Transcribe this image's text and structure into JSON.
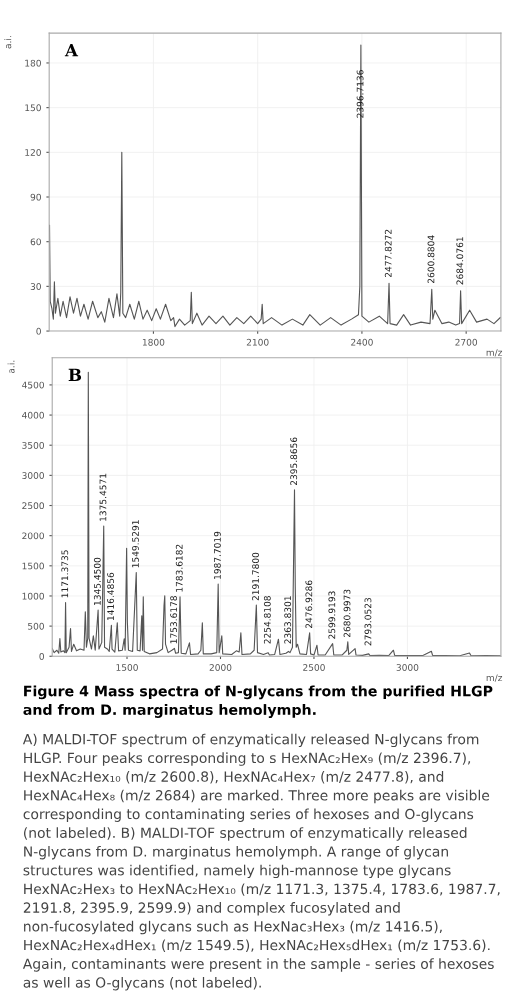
{
  "chart_data": [
    {
      "type": "line",
      "xlabel": "m/z",
      "ylabel": "a.i.",
      "xlim": [
        1500,
        2800
      ],
      "ylim": [
        0,
        200
      ],
      "xticks": [
        1800,
        2100,
        2400,
        2700
      ],
      "yticks": [
        0,
        30,
        60,
        90,
        120,
        150,
        180
      ],
      "grid": true,
      "legend": false,
      "marker": "none",
      "line_style": "solid",
      "series": [
        {
          "color": "#555555",
          "x": [
            1501,
            1503,
            1508,
            1512,
            1515,
            1518,
            1525,
            1532,
            1540,
            1550,
            1560,
            1570,
            1580,
            1590,
            1600,
            1612,
            1625,
            1640,
            1650,
            1660,
            1672,
            1685,
            1695,
            1703,
            1706,
            1709,
            1712,
            1720,
            1732,
            1745,
            1758,
            1770,
            1782,
            1795,
            1808,
            1820,
            1835,
            1850,
            1858,
            1862,
            1875,
            1890,
            1906,
            1909,
            1912,
            1925,
            1940,
            1960,
            1980,
            2000,
            2020,
            2040,
            2060,
            2080,
            2100,
            2110,
            2113,
            2116,
            2140,
            2170,
            2200,
            2230,
            2250,
            2280,
            2310,
            2340,
            2370,
            2390,
            2394,
            2397,
            2400,
            2420,
            2450,
            2474,
            2478,
            2481,
            2500,
            2520,
            2540,
            2570,
            2596,
            2601,
            2604,
            2610,
            2630,
            2650,
            2670,
            2681,
            2684,
            2687,
            2710,
            2730,
            2760,
            2780,
            2798
          ],
          "values": [
            71,
            20,
            15,
            8,
            33,
            12,
            22,
            10,
            20,
            9,
            23,
            12,
            22,
            10,
            18,
            8,
            20,
            9,
            13,
            6,
            22,
            9,
            25,
            10,
            26,
            120,
            12,
            9,
            18,
            8,
            20,
            8,
            14,
            7,
            15,
            8,
            18,
            7,
            9,
            3,
            8,
            4,
            7,
            26,
            5,
            12,
            4,
            10,
            5,
            10,
            4,
            9,
            5,
            10,
            5,
            8,
            18,
            5,
            9,
            4,
            8,
            4,
            11,
            4,
            9,
            4,
            8,
            11,
            30,
            192,
            10,
            6,
            10,
            5,
            32,
            5,
            4,
            11,
            4,
            6,
            5,
            28,
            8,
            14,
            5,
            6,
            4,
            5,
            27,
            5,
            14,
            6,
            8,
            5,
            9
          ]
        }
      ],
      "annotations": [
        "A",
        {
          "text": "2396.7136",
          "x": 2397,
          "y": 140
        },
        {
          "text": "2477.8272",
          "x": 2478,
          "y": 33
        },
        {
          "text": "2600.8804",
          "x": 2601,
          "y": 29
        },
        {
          "text": "2684.0761",
          "x": 2684,
          "y": 28
        }
      ]
    },
    {
      "type": "line",
      "xlabel": "m/z",
      "ylabel": "a.i.",
      "xlim": [
        1100,
        3500
      ],
      "ylim": [
        0,
        4950
      ],
      "xticks": [
        1500,
        2000,
        2500,
        3000
      ],
      "yticks": [
        0,
        500,
        1000,
        1500,
        2000,
        2500,
        3000,
        3500,
        4000,
        4500
      ],
      "grid": true,
      "legend": false,
      "marker": "none",
      "line_style": "solid",
      "series": [
        {
          "color": "#555555",
          "x": [
            1100,
            1110,
            1125,
            1135,
            1141,
            1146,
            1160,
            1168,
            1171.4,
            1175,
            1190,
            1198,
            1203,
            1215,
            1230,
            1250,
            1270,
            1277,
            1283,
            1290,
            1293,
            1297,
            1310,
            1320,
            1330,
            1345.5,
            1350,
            1365,
            1375.5,
            1380,
            1395,
            1405,
            1416.5,
            1420,
            1435,
            1448,
            1455,
            1475,
            1485,
            1490,
            1498,
            1502,
            1508,
            1530,
            1549.5,
            1555,
            1570,
            1579,
            1583,
            1587,
            1592,
            1620,
            1660,
            1690,
            1698,
            1702,
            1706,
            1720,
            1740,
            1753.6,
            1760,
            1775,
            1783.6,
            1790,
            1815,
            1834,
            1840,
            1880,
            1895,
            1903,
            1908,
            1950,
            1980,
            1987.7,
            1993,
            2007,
            2012,
            2060,
            2085,
            2100,
            2109,
            2115,
            2160,
            2180,
            2191.8,
            2198,
            2230,
            2254.8,
            2262,
            2290,
            2310,
            2318,
            2350,
            2363.8,
            2372,
            2385,
            2395.9,
            2400,
            2405,
            2412,
            2425,
            2460,
            2476.9,
            2482,
            2500,
            2516,
            2522,
            2560,
            2599.9,
            2606,
            2650,
            2676,
            2681,
            2686,
            2720,
            2725,
            2760,
            2793,
            2800,
            2850,
            2900,
            2925,
            2932,
            3000,
            3080,
            3128,
            3135,
            3200,
            3280,
            3332,
            3340,
            3420,
            3498
          ],
          "values": [
            130,
            60,
            100,
            50,
            294,
            70,
            90,
            60,
            892,
            60,
            150,
            460,
            80,
            200,
            90,
            120,
            100,
            737,
            150,
            300,
            4710,
            300,
            120,
            340,
            100,
            765,
            120,
            230,
            2160,
            150,
            120,
            80,
            515,
            120,
            70,
            554,
            90,
            100,
            290,
            100,
            1790,
            560,
            100,
            80,
            1390,
            100,
            90,
            670,
            100,
            986,
            80,
            40,
            60,
            120,
            840,
            1003,
            200,
            60,
            100,
            130,
            50,
            60,
            986,
            50,
            40,
            222,
            30,
            40,
            100,
            554,
            40,
            40,
            60,
            1197,
            60,
            338,
            40,
            30,
            90,
            70,
            388,
            30,
            40,
            100,
            848,
            60,
            30,
            60,
            20,
            30,
            283,
            30,
            50,
            80,
            60,
            150,
            2759,
            1150,
            150,
            200,
            40,
            30,
            388,
            40,
            20,
            183,
            20,
            20,
            210,
            20,
            20,
            100,
            238,
            30,
            127,
            20,
            15,
            40,
            10,
            15,
            10,
            100,
            10,
            10,
            10,
            83,
            10,
            10,
            8,
            55,
            8,
            10,
            8
          ]
        }
      ],
      "annotations": [
        "B",
        {
          "text": "1171.3735",
          "x": 1171.4,
          "y": 892
        },
        {
          "text": "1345.4500",
          "x": 1345.5,
          "y": 765
        },
        {
          "text": "1375.4571",
          "x": 1375.5,
          "y": 2160
        },
        {
          "text": "1416.4856",
          "x": 1416.5,
          "y": 515
        },
        {
          "text": "1549.5291",
          "x": 1549.5,
          "y": 1390
        },
        {
          "text": "1753.6178",
          "x": 1753.6,
          "y": 130
        },
        {
          "text": "1783.6182",
          "x": 1783.6,
          "y": 986
        },
        {
          "text": "1987.7019",
          "x": 1987.7,
          "y": 1197
        },
        {
          "text": "2191.7800",
          "x": 2191.8,
          "y": 848
        },
        {
          "text": "2254.8108",
          "x": 2254.8,
          "y": 130
        },
        {
          "text": "2363.8301",
          "x": 2363.8,
          "y": 130
        },
        {
          "text": "2395.8656",
          "x": 2395.9,
          "y": 2759
        },
        {
          "text": "2476.9286",
          "x": 2476.9,
          "y": 388
        },
        {
          "text": "2599.9193",
          "x": 2599.9,
          "y": 210
        },
        {
          "text": "2680.9973",
          "x": 2681,
          "y": 238
        },
        {
          "text": "2793.0523",
          "x": 2793,
          "y": 100
        },
        "Figure 4 Mass spectra of N-glycans from the purified HLGP and from D. marginatus hemolymph.",
        "A) MALDI-TOF spectrum of enzymatically released N-glycans from HLGP. Four peaks corresponding to s HexNAc₂Hex₉ (m/z 2396.7), HexNAc₂Hex₁₀ (m/z 2600.8), HexNAc₄Hex₇ (m/z 2477.8), and HexNAc₄Hex₈ (m/z 2684) are marked. Three more peaks are visible corresponding to contaminating series of hexoses and O-glycans (not labeled). B) MALDI-TOF spectrum of enzymatically released N-glycans from D. marginatus hemolymph. A range of glycan structures was identified, namely high-mannose type glycans HexNAc₂Hex₃ to HexNAc₂Hex₁₀ (m/z 1171.3, 1375.4, 1783.6, 1987.7, 2191.8, 2395.9, 2599.9) and complex fucosylated and non-fucosylated glycans such as HexNac₃Hex₃ (m/z 1416.5), HexNAc₂Hex₄dHex₁ (m/z 1549.5), HexNAc₂Hex₅dHex₁ (m/z 1753.6). Again, contaminants were present in the sample - series of hexoses as well as O-glycans (not labeled)."
      ]
    }
  ]
}
